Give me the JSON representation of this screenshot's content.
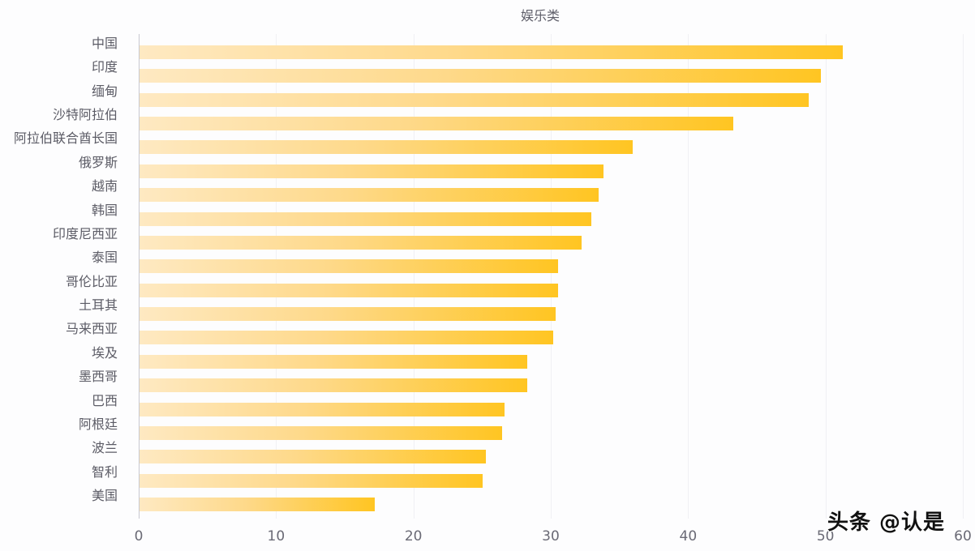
{
  "chart_data": {
    "type": "bar",
    "orientation": "horizontal",
    "title": "娱乐类",
    "xlabel": "",
    "ylabel": "",
    "xlim": [
      0,
      60
    ],
    "x_ticks": [
      0,
      10,
      20,
      30,
      40,
      50,
      60
    ],
    "grid": true,
    "legend": null,
    "categories": [
      "中国",
      "印度",
      "缅甸",
      "沙特阿拉伯",
      "阿拉伯联合酋长国",
      "俄罗斯",
      "越南",
      "韩国",
      "印度尼西亚",
      "泰国",
      "哥伦比亚",
      "土耳其",
      "马来西亚",
      "埃及",
      "墨西哥",
      "巴西",
      "阿根廷",
      "波兰",
      "智利",
      "美国"
    ],
    "values": [
      51.2,
      49.6,
      48.7,
      43.2,
      35.9,
      33.8,
      33.4,
      32.9,
      32.2,
      30.5,
      30.5,
      30.3,
      30.1,
      28.2,
      28.2,
      26.6,
      26.4,
      25.2,
      25.0,
      17.1
    ],
    "colors": {
      "bar_gradient_start": "#fee9c2",
      "bar_gradient_end": "#ffc522"
    }
  },
  "watermark": "头条 @认是"
}
